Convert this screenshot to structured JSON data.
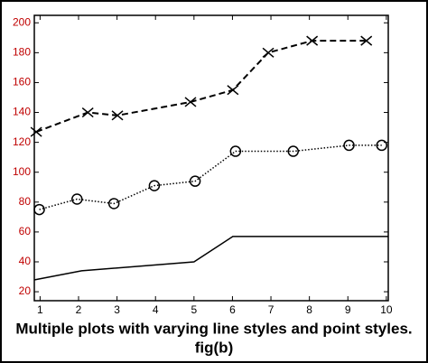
{
  "chart_data": {
    "type": "line",
    "caption": "Multiple plots with varying line styles and point styles.",
    "figure_label": "fig(b)",
    "xlim": [
      0.85,
      10.05
    ],
    "xticks": [
      1,
      2,
      3,
      4,
      5,
      6,
      7,
      8,
      9,
      10
    ],
    "ylim": [
      14,
      205
    ],
    "yticks": [
      20,
      40,
      60,
      80,
      100,
      120,
      140,
      160,
      180,
      200
    ],
    "ytick_color": "#c00000",
    "xtick_color": "#000000",
    "series": [
      {
        "color": "#000000",
        "line_style": "dashed",
        "marker": "x",
        "x": [
          0.9,
          2.24,
          3.01,
          4.91,
          6.01,
          6.93,
          8.07,
          9.48
        ],
        "values": [
          127,
          140,
          138,
          147,
          155,
          180,
          188,
          188
        ]
      },
      {
        "color": "#000000",
        "line_style": "dotted",
        "marker": "o",
        "x": [
          0.98,
          1.96,
          2.92,
          3.97,
          5.03,
          6.08,
          7.58,
          9.03,
          9.88
        ],
        "values": [
          75,
          82,
          79,
          91,
          94,
          114,
          114,
          118,
          118
        ]
      },
      {
        "color": "#000000",
        "line_style": "solid",
        "marker": "none",
        "x": [
          0.86,
          2.08,
          5.0,
          6.01,
          10.05
        ],
        "values": [
          28,
          34,
          40,
          57,
          57
        ]
      }
    ]
  }
}
